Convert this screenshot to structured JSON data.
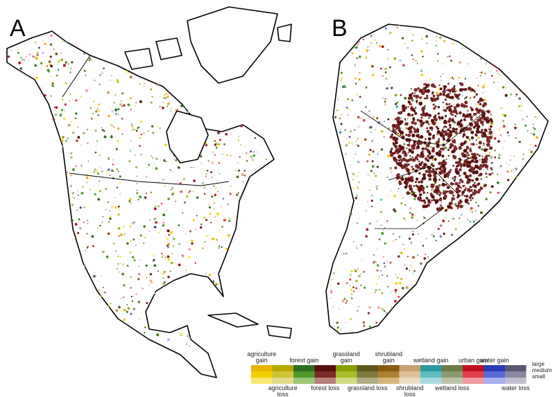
{
  "panels": [
    {
      "label": "A"
    },
    {
      "label": "B"
    }
  ],
  "legend": {
    "items": [
      {
        "label": "agriculture gain",
        "colors": [
          "#e8b400",
          "#f2d000",
          "#f7e870"
        ]
      },
      {
        "label": "agriculture loss",
        "colors": [
          "#b5a800",
          "#cfc33a",
          "#e2db8a"
        ]
      },
      {
        "label": "forest gain",
        "colors": [
          "#2e6e1e",
          "#4f9a2e",
          "#9cc67a"
        ]
      },
      {
        "label": "forest loss",
        "colors": [
          "#5a1010",
          "#7a2a2a",
          "#b58080"
        ]
      },
      {
        "label": "grassland gain",
        "colors": [
          "#8aa000",
          "#a9bc2a",
          "#cfdc84"
        ]
      },
      {
        "label": "grassland loss",
        "colors": [
          "#5e5a1e",
          "#7d7a3e",
          "#b0ad84"
        ]
      },
      {
        "label": "shrubland gain",
        "colors": [
          "#8a5a10",
          "#b08030",
          "#d6b47c"
        ]
      },
      {
        "label": "shrubland loss",
        "colors": [
          "#c8a070",
          "#dcc09c",
          "#ecdcc6"
        ]
      },
      {
        "label": "wetland gain",
        "colors": [
          "#2a9aa0",
          "#5cbcc0",
          "#a6dcde"
        ]
      },
      {
        "label": "wetland loss",
        "colors": [
          "#6e7a4a",
          "#8e9870",
          "#bcc2a6"
        ]
      },
      {
        "label": "urban gain",
        "colors": [
          "#c0101e",
          "#e0404a",
          "#f09aa0"
        ]
      },
      {
        "label": "water gain",
        "colors": [
          "#2a3ab8",
          "#5a6ad8",
          "#a8b0ec"
        ]
      },
      {
        "label": "water loss",
        "colors": [
          "#5a5870",
          "#8a88a0",
          "#c0bece"
        ]
      }
    ],
    "sizes": [
      "large",
      "medium",
      "small"
    ]
  }
}
